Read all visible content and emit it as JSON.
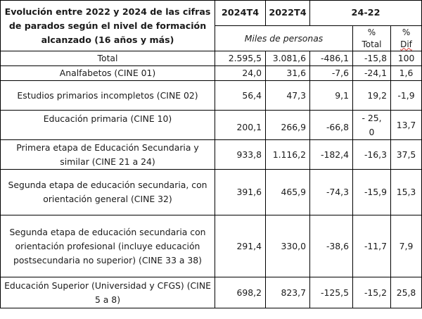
{
  "header": {
    "title": "Evolución entre 2022 y 2024 de las cifras de parados según el nivel de formación alcanzado (16 años y más)",
    "col_2024": "2024T4",
    "col_2022": "2022T4",
    "col_diff_group": "24-22",
    "units": "Miles de personas",
    "pct_symbol_1": "%",
    "pct_total": "Total",
    "pct_symbol_2": "%",
    "pct_dif": "Dif"
  },
  "rows": [
    {
      "label": "Total",
      "v2024": "2.595,5",
      "v2022": "3.081,6",
      "diff": "-486,1",
      "pct_total": "-15,8",
      "pct_dif": "100"
    },
    {
      "label": "Analfabetos (CINE 01)",
      "v2024": "24,0",
      "v2022": "31,6",
      "diff": "-7,6",
      "pct_total": "-24,1",
      "pct_dif": "1,6"
    },
    {
      "label": "Estudios primarios incompletos (CINE 02)",
      "v2024": "56,4",
      "v2022": "47,3",
      "diff": "9,1",
      "pct_total": "19,2",
      "pct_dif": "-1,9"
    },
    {
      "label": "Educación primaria (CINE 10)",
      "v2024": "200,1",
      "v2022": "266,9",
      "diff": "-66,8",
      "pct_total": "- 25,0",
      "pct_dif": "13,7"
    },
    {
      "label": "Primera etapa de Educación Secundaria y similar (CINE 21 a 24)",
      "v2024": "933,8",
      "v2022": "1.116,2",
      "diff": "-182,4",
      "pct_total": "-16,3",
      "pct_dif": "37,5"
    },
    {
      "label": "Segunda etapa de educación secundaria, con orientación general (CINE 32)",
      "v2024": "391,6",
      "v2022": "465,9",
      "diff": "-74,3",
      "pct_total": "-15,9",
      "pct_dif": "15,3"
    },
    {
      "label": "Segunda etapa de educación secundaria con orientación profesional (incluye educación postsecundaria no superior) (CINE 33 a 38)",
      "v2024": "291,4",
      "v2022": "330,0",
      "diff": "-38,6",
      "pct_total": "-11,7",
      "pct_dif": "7,9"
    },
    {
      "label": "Educación Superior (Universidad y CFGS) (CINE 5 a 8)",
      "v2024": "698,2",
      "v2022": "823,7",
      "diff": "-125,5",
      "pct_total": "-15,2",
      "pct_dif": "25,8"
    }
  ]
}
